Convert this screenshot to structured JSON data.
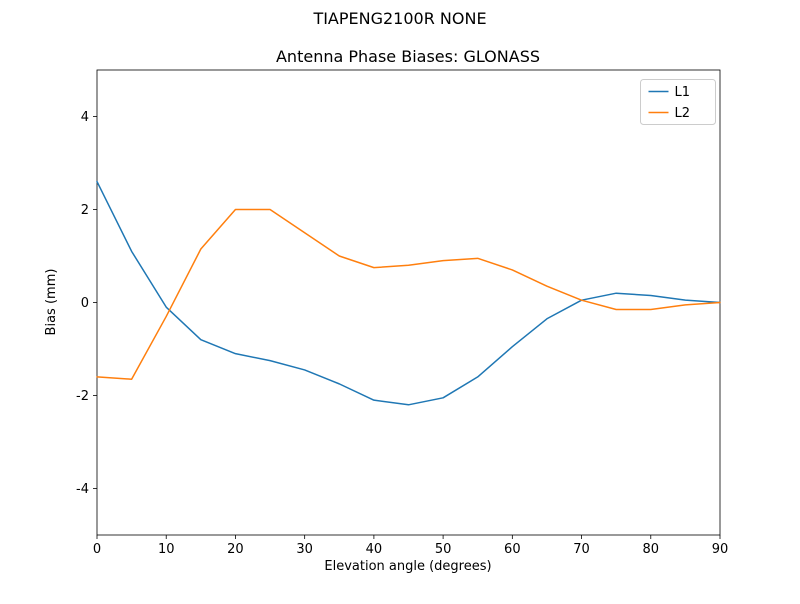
{
  "suptitle": "TIAPENG2100R    NONE",
  "chart_data": {
    "type": "line",
    "title": "Antenna Phase Biases: GLONASS",
    "xlabel": "Elevation angle (degrees)",
    "ylabel": "Bias (mm)",
    "xlim": [
      0,
      90
    ],
    "ylim": [
      -5,
      5
    ],
    "xticks": [
      0,
      10,
      20,
      30,
      40,
      50,
      60,
      70,
      80,
      90
    ],
    "yticks": [
      -4,
      -2,
      0,
      2,
      4
    ],
    "grid": false,
    "legend_position": "upper right",
    "x": [
      0,
      5,
      10,
      15,
      20,
      25,
      30,
      35,
      40,
      45,
      50,
      55,
      60,
      65,
      70,
      75,
      80,
      85,
      90
    ],
    "series": [
      {
        "name": "L1",
        "color": "#1f77b4",
        "values": [
          2.6,
          1.1,
          -0.1,
          -0.8,
          -1.1,
          -1.25,
          -1.45,
          -1.75,
          -2.1,
          -2.2,
          -2.05,
          -1.6,
          -0.95,
          -0.35,
          0.05,
          0.2,
          0.15,
          0.05,
          0.0
        ]
      },
      {
        "name": "L2",
        "color": "#ff7f0e",
        "values": [
          -1.6,
          -1.65,
          -0.3,
          1.15,
          2.0,
          2.0,
          1.5,
          1.0,
          0.75,
          0.8,
          0.9,
          0.95,
          0.7,
          0.35,
          0.05,
          -0.15,
          -0.15,
          -0.05,
          0.0
        ]
      }
    ]
  }
}
